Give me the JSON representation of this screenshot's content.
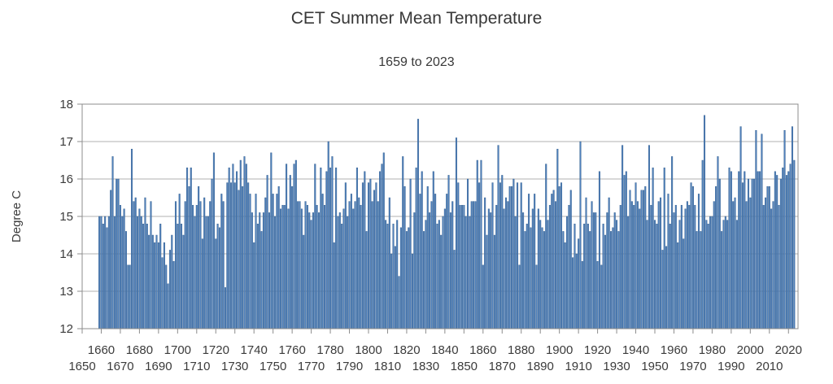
{
  "chart_data": {
    "type": "bar",
    "title": "CET Summer Mean Temperature",
    "subtitle": "1659 to 2023",
    "ylabel": "Degree C",
    "xlabel": "",
    "legend": "none",
    "grid": "horizontal",
    "ylim": [
      12,
      18
    ],
    "xlim": [
      1650,
      2025
    ],
    "y_ticks": [
      12,
      13,
      14,
      15,
      16,
      17,
      18
    ],
    "x_tick_interval": 10,
    "x_tick_labels_row1": [
      "1660",
      "1680",
      "1700",
      "1720",
      "1740",
      "1760",
      "1780",
      "1800",
      "1820",
      "1840",
      "1860",
      "1880",
      "1900",
      "1920",
      "1940",
      "1960",
      "1980",
      "2000",
      "2020"
    ],
    "x_tick_labels_row2": [
      "1650",
      "1670",
      "1690",
      "1710",
      "1730",
      "1750",
      "1770",
      "1790",
      "1810",
      "1830",
      "1850",
      "1870",
      "1890",
      "1910",
      "1930",
      "1950",
      "1970",
      "1990",
      "2010"
    ],
    "start_year": 1659,
    "end_year": 2023,
    "values": [
      15.0,
      15.0,
      14.8,
      15.0,
      14.7,
      15.0,
      15.7,
      16.6,
      15.0,
      16.0,
      16.0,
      15.3,
      15.0,
      15.2,
      14.6,
      13.7,
      13.7,
      16.8,
      15.4,
      15.5,
      15.0,
      15.2,
      15.0,
      14.8,
      15.5,
      14.8,
      14.5,
      15.4,
      14.5,
      14.3,
      14.5,
      14.3,
      14.8,
      13.9,
      14.3,
      13.7,
      13.2,
      14.1,
      14.5,
      13.8,
      15.4,
      14.8,
      15.6,
      14.8,
      14.5,
      15.4,
      16.3,
      15.8,
      16.3,
      15.3,
      15.0,
      15.3,
      15.8,
      15.4,
      14.4,
      15.5,
      15.0,
      15.0,
      15.4,
      16.0,
      16.7,
      14.4,
      14.8,
      14.7,
      15.6,
      15.4,
      13.1,
      15.9,
      16.3,
      15.9,
      16.4,
      15.9,
      16.2,
      15.7,
      16.5,
      15.8,
      16.6,
      16.4,
      15.9,
      15.6,
      15.1,
      14.3,
      15.6,
      14.8,
      15.1,
      14.6,
      15.1,
      15.5,
      16.1,
      15.1,
      16.7,
      15.6,
      15.0,
      15.6,
      15.8,
      15.2,
      15.3,
      15.3,
      16.4,
      15.2,
      16.1,
      15.8,
      16.4,
      16.5,
      15.4,
      15.4,
      15.2,
      14.5,
      15.4,
      15.3,
      15.1,
      14.9,
      15.1,
      16.4,
      15.3,
      15.1,
      16.3,
      15.6,
      15.3,
      16.2,
      17.0,
      16.3,
      16.6,
      14.3,
      16.3,
      15.0,
      15.1,
      14.8,
      15.2,
      15.9,
      15.0,
      15.4,
      15.6,
      15.2,
      15.4,
      16.3,
      15.5,
      15.3,
      15.9,
      16.2,
      14.6,
      15.9,
      16.0,
      15.4,
      15.7,
      15.9,
      15.4,
      16.2,
      16.4,
      16.7,
      14.9,
      14.8,
      15.5,
      14.0,
      14.8,
      14.2,
      14.9,
      13.4,
      14.7,
      16.6,
      15.8,
      14.6,
      14.7,
      16.0,
      14.0,
      15.1,
      16.3,
      17.6,
      15.6,
      16.2,
      14.6,
      14.9,
      15.8,
      15.1,
      15.4,
      16.2,
      15.6,
      14.8,
      14.9,
      14.5,
      15.0,
      15.2,
      15.6,
      16.1,
      15.1,
      15.4,
      14.1,
      17.1,
      15.9,
      15.3,
      15.3,
      15.3,
      15.0,
      16.0,
      15.0,
      15.4,
      15.4,
      15.4,
      16.5,
      15.9,
      16.5,
      13.7,
      15.5,
      14.5,
      15.2,
      15.1,
      15.9,
      14.5,
      15.3,
      16.9,
      15.9,
      16.1,
      15.2,
      15.5,
      15.4,
      15.8,
      15.8,
      16.0,
      15.0,
      15.9,
      13.7,
      15.9,
      15.1,
      14.6,
      14.8,
      15.6,
      14.7,
      15.2,
      15.6,
      13.7,
      15.2,
      14.9,
      14.7,
      14.6,
      16.4,
      14.9,
      15.3,
      15.6,
      15.7,
      15.4,
      16.8,
      15.8,
      15.9,
      14.6,
      14.3,
      15.0,
      15.3,
      15.7,
      13.9,
      14.8,
      14.0,
      14.4,
      17.0,
      13.8,
      14.8,
      15.5,
      14.8,
      14.6,
      15.4,
      15.1,
      15.1,
      13.8,
      16.2,
      13.7,
      14.8,
      14.5,
      15.1,
      15.5,
      14.6,
      14.7,
      15.1,
      14.9,
      14.6,
      15.3,
      16.9,
      16.1,
      16.2,
      15.0,
      15.7,
      15.4,
      15.3,
      15.9,
      15.4,
      15.2,
      15.7,
      15.7,
      15.8,
      14.9,
      16.9,
      15.3,
      16.3,
      14.9,
      14.8,
      15.4,
      15.5,
      14.1,
      16.3,
      14.2,
      15.6,
      14.8,
      16.6,
      15.1,
      15.3,
      14.3,
      14.9,
      15.3,
      14.4,
      15.2,
      15.4,
      15.3,
      15.9,
      15.8,
      15.3,
      14.6,
      15.6,
      14.6,
      16.5,
      17.7,
      14.9,
      14.8,
      15.0,
      15.0,
      15.4,
      15.8,
      16.6,
      16.0,
      14.6,
      14.9,
      15.0,
      14.9,
      16.3,
      16.2,
      15.4,
      15.5,
      14.9,
      16.2,
      17.4,
      15.9,
      16.2,
      15.4,
      16.0,
      15.5,
      16.0,
      16.0,
      17.3,
      16.2,
      16.2,
      17.2,
      15.3,
      15.5,
      15.8,
      15.8,
      15.2,
      15.4,
      16.2,
      16.1,
      15.3,
      16.0,
      16.3,
      17.3,
      16.1,
      16.2,
      16.4,
      17.4,
      16.5
    ],
    "colors": {
      "bar_fill": "#4f81bd",
      "bar_stroke": "#36608f",
      "grid": "#b2b2b2",
      "frame": "#8c8c8c",
      "tick": "#8c8c8c",
      "text": "#3b3b3b"
    }
  }
}
